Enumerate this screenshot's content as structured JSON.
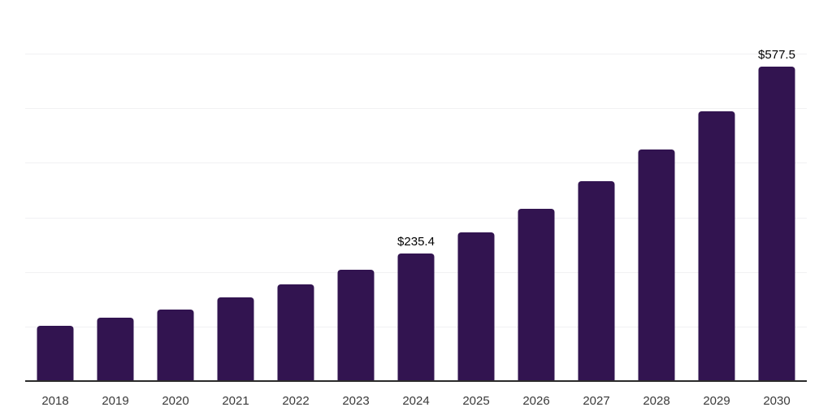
{
  "chart_data": {
    "type": "bar",
    "title": "",
    "xlabel": "",
    "ylabel": "",
    "categories": [
      "2018",
      "2019",
      "2020",
      "2021",
      "2022",
      "2023",
      "2024",
      "2025",
      "2026",
      "2027",
      "2028",
      "2029",
      "2030"
    ],
    "values": [
      103.3,
      117.8,
      133.2,
      155.2,
      178.1,
      204.9,
      235.4,
      273.4,
      317.2,
      368.4,
      426.1,
      495.8,
      577.5
    ],
    "bar_labels": {
      "2024": "$235.4",
      "2030": "$577.5"
    },
    "ylim": [
      0,
      700
    ],
    "grid_step": 100,
    "grid": true,
    "legend": false,
    "y_axis_labels_visible": false
  },
  "colors": {
    "bar": "#321450",
    "gridline": "#f1f1f3",
    "axis": "#2b2b2b",
    "tick_label": "#3a3a3a",
    "value_label": "#000000",
    "background": "#ffffff"
  }
}
